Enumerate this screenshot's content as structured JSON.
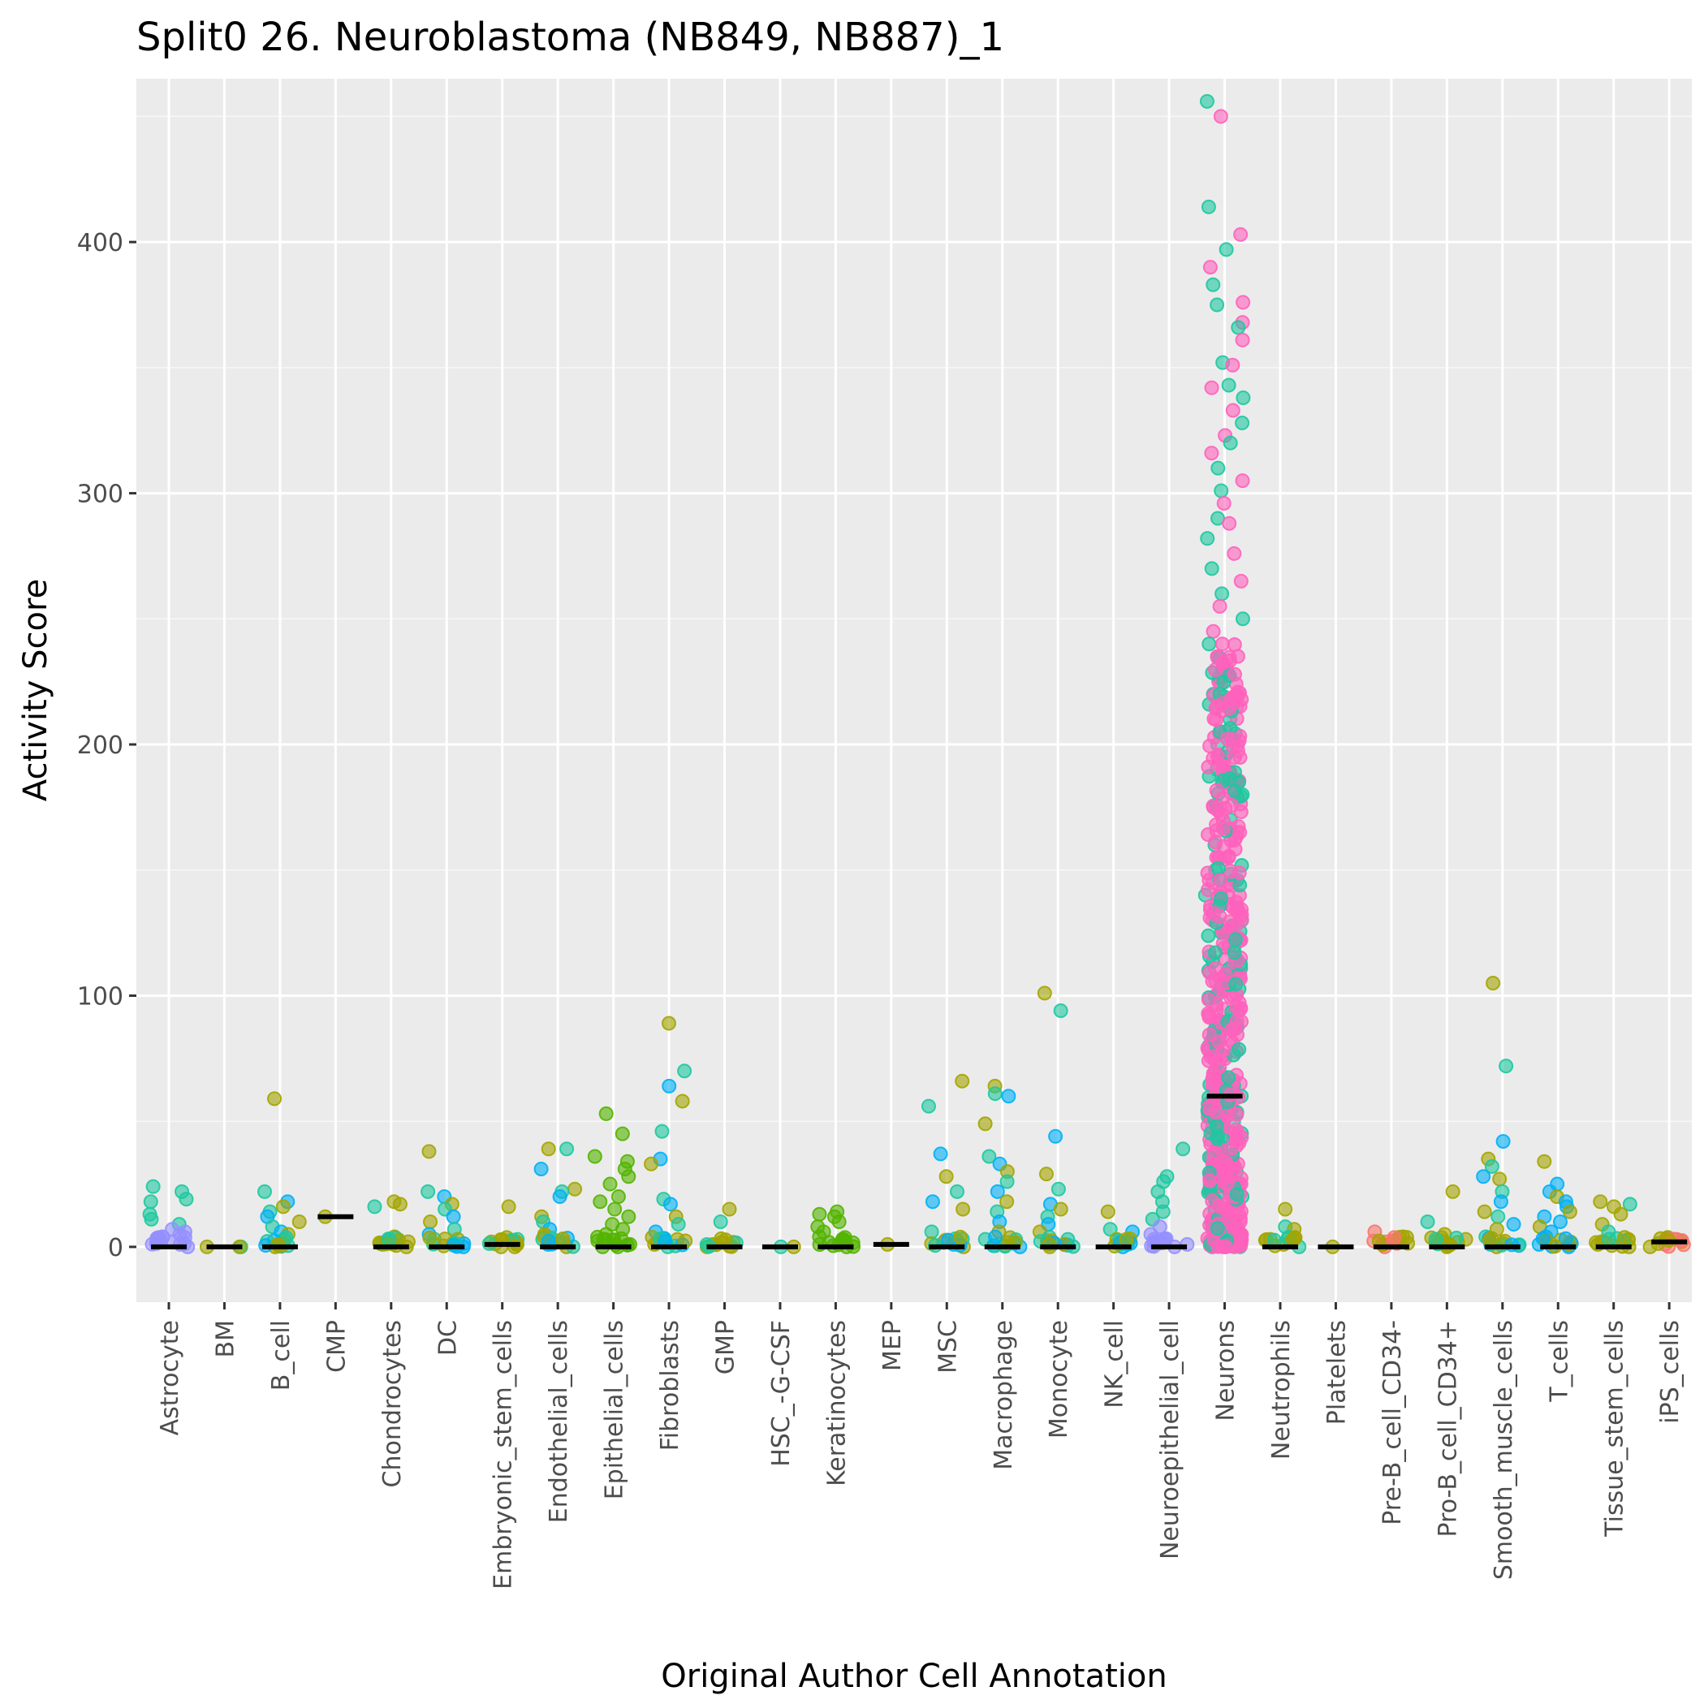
{
  "chart_data": {
    "type": "scatter",
    "title": "Split0 26. Neuroblastoma (NB849, NB887)_1",
    "xlabel": "Original Author Cell Annotation",
    "ylabel": "Activity Score",
    "ylim": [
      -22,
      465
    ],
    "yticks": [
      0,
      100,
      200,
      300,
      400
    ],
    "grid": true,
    "legend": "none",
    "categories": [
      "Astrocyte",
      "BM",
      "B_cell",
      "CMP",
      "Chondrocytes",
      "DC",
      "Embryonic_stem_cells",
      "Endothelial_cells",
      "Epithelial_cells",
      "Fibroblasts",
      "GMP",
      "HSC_-G-CSF",
      "Keratinocytes",
      "MEP",
      "MSC",
      "Macrophage",
      "Monocyte",
      "NK_cell",
      "Neuroepithelial_cell",
      "Neurons",
      "Neutrophils",
      "Platelets",
      "Pre-B_cell_CD34-",
      "Pro-B_cell_CD34+",
      "Smooth_muscle_cells",
      "T_cells",
      "Tissue_stem_cells",
      "iPS_cells"
    ],
    "medians": [
      0,
      0,
      0,
      12,
      0,
      0,
      1,
      0,
      0,
      0,
      0,
      0,
      0,
      1,
      0,
      0,
      0,
      0,
      0,
      60,
      0,
      0,
      0,
      0,
      0,
      0,
      0,
      2
    ],
    "colors": {
      "green": "#1ec8a0",
      "olive": "#a3a500",
      "lime": "#53b400",
      "blue": "#00b0f6",
      "purple": "#9590ff",
      "pink": "#ff62bc",
      "red": "#f8766d",
      "teal": "#00bf7d"
    },
    "series": [
      {
        "category": "Astrocyte",
        "values": [
          24,
          22,
          19,
          18,
          13,
          11,
          9,
          7,
          6,
          5,
          4,
          3,
          2,
          1,
          0
        ]
      },
      {
        "category": "BM",
        "values": [
          0,
          0,
          0
        ]
      },
      {
        "category": "B_cell",
        "values": [
          59,
          22,
          18,
          16,
          14,
          12,
          10,
          8,
          6,
          5,
          3,
          1,
          0
        ]
      },
      {
        "category": "CMP",
        "values": [
          12
        ]
      },
      {
        "category": "Chondrocytes",
        "values": [
          18,
          16,
          17,
          4,
          2,
          1,
          0
        ]
      },
      {
        "category": "DC",
        "values": [
          38,
          22,
          20,
          17,
          15,
          12,
          10,
          7,
          5,
          3,
          1,
          0
        ]
      },
      {
        "category": "Embryonic_stem_cells",
        "values": [
          16,
          3,
          2,
          1,
          0
        ]
      },
      {
        "category": "Endothelial_cells",
        "values": [
          39,
          39,
          31,
          23,
          22,
          20,
          12,
          10,
          7,
          5,
          3,
          1,
          0
        ]
      },
      {
        "category": "Epithelial_cells",
        "values": [
          53,
          45,
          36,
          34,
          31,
          28,
          25,
          20,
          18,
          15,
          12,
          9,
          7,
          5,
          3,
          1,
          0
        ]
      },
      {
        "category": "Fibroblasts",
        "values": [
          89,
          70,
          64,
          58,
          46,
          35,
          33,
          19,
          17,
          12,
          9,
          6,
          3,
          0
        ]
      },
      {
        "category": "GMP",
        "values": [
          15,
          10,
          1,
          0
        ]
      },
      {
        "category": "HSC_-G-CSF",
        "values": [
          0,
          0
        ]
      },
      {
        "category": "Keratinocytes",
        "values": [
          14,
          13,
          12,
          10,
          8,
          6,
          4,
          2,
          0
        ]
      },
      {
        "category": "MEP",
        "values": [
          1
        ]
      },
      {
        "category": "MSC",
        "values": [
          66,
          56,
          37,
          28,
          22,
          18,
          15,
          6,
          1,
          0
        ]
      },
      {
        "category": "Macrophage",
        "values": [
          64,
          61,
          60,
          49,
          36,
          33,
          30,
          26,
          22,
          18,
          14,
          10,
          6,
          3,
          0
        ]
      },
      {
        "category": "Monocyte",
        "values": [
          101,
          94,
          44,
          29,
          23,
          17,
          15,
          12,
          9,
          6,
          3,
          1,
          0
        ]
      },
      {
        "category": "NK_cell",
        "values": [
          14,
          7,
          6,
          3,
          1,
          0
        ]
      },
      {
        "category": "Neuroepithelial_cell",
        "values": [
          39,
          28,
          26,
          22,
          18,
          14,
          11,
          8,
          5,
          3,
          1,
          0
        ]
      },
      {
        "category": "Neurons",
        "values": [
          456,
          450,
          414,
          403,
          397,
          390,
          383,
          376,
          375,
          368,
          366,
          361,
          352,
          351,
          343,
          342,
          338,
          333,
          328,
          323,
          320,
          316,
          310,
          305,
          301,
          296,
          290,
          288,
          282,
          276,
          270,
          265,
          260,
          255,
          250,
          245,
          240,
          235,
          230,
          225,
          220,
          215,
          210,
          205,
          200,
          195,
          190,
          185,
          180,
          175,
          170,
          165,
          160,
          155,
          150,
          145,
          140,
          135,
          130,
          125,
          120,
          115,
          110,
          105,
          100,
          95,
          90,
          85,
          80,
          75,
          70,
          65,
          60,
          55,
          50,
          45,
          40,
          35,
          30,
          25,
          20,
          15,
          10,
          5,
          0
        ]
      },
      {
        "category": "Neutrophils",
        "values": [
          15,
          8,
          7,
          3,
          1,
          0
        ]
      },
      {
        "category": "Platelets",
        "values": [
          0
        ]
      },
      {
        "category": "Pre-B_cell_CD34-",
        "values": [
          6,
          4,
          2,
          1,
          0
        ]
      },
      {
        "category": "Pro-B_cell_CD34+",
        "values": [
          22,
          10,
          5,
          3,
          2,
          1,
          0
        ]
      },
      {
        "category": "Smooth_muscle_cells",
        "values": [
          105,
          72,
          42,
          35,
          32,
          28,
          27,
          22,
          18,
          14,
          12,
          9,
          7,
          4,
          1,
          0
        ]
      },
      {
        "category": "T_cells",
        "values": [
          34,
          25,
          22,
          20,
          18,
          16,
          14,
          12,
          10,
          8,
          6,
          4,
          2,
          1,
          0
        ]
      },
      {
        "category": "Tissue_stem_cells",
        "values": [
          18,
          17,
          16,
          13,
          9,
          6,
          3,
          1,
          0
        ]
      },
      {
        "category": "iPS_cells",
        "values": [
          3,
          2,
          1,
          0
        ]
      }
    ]
  }
}
